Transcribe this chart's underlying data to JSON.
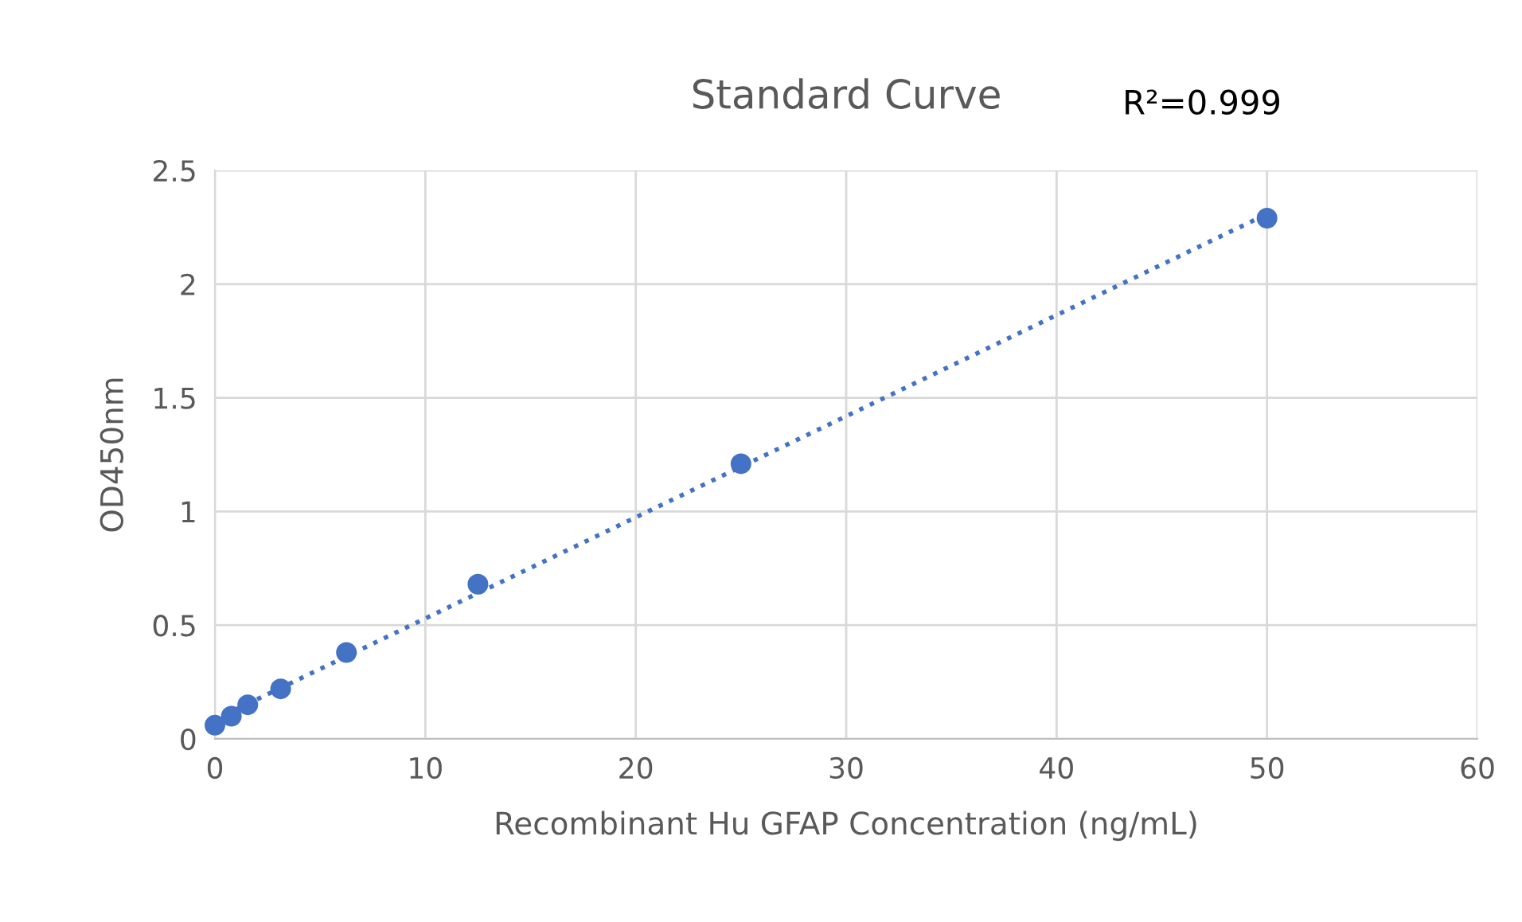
{
  "chart_data": {
    "type": "scatter",
    "title": "Standard Curve",
    "xlabel": "Recombinant Hu GFAP Concentration (ng/mL)",
    "ylabel": "OD450nm",
    "x": [
      0,
      0.78,
      1.56,
      3.125,
      6.25,
      12.5,
      25,
      50
    ],
    "series": [
      {
        "color": "#4472c4",
        "marker": "circle",
        "values": [
          0.06,
          0.1,
          0.15,
          0.22,
          0.38,
          0.68,
          1.21,
          2.29
        ]
      },
      {
        "type": "line",
        "color": "#4472c4",
        "line_style": "dotted",
        "x": [
          0,
          50
        ],
        "values": [
          0.085,
          2.308
        ]
      }
    ],
    "xlim": [
      0,
      60
    ],
    "xticks": [
      0,
      10,
      20,
      30,
      40,
      50,
      60
    ],
    "ylim": [
      0,
      2.5
    ],
    "yticks": [
      0,
      0.5,
      1,
      1.5,
      2,
      2.5
    ],
    "grid": true,
    "legend": false,
    "annotations": [
      "R²=0.999"
    ]
  }
}
